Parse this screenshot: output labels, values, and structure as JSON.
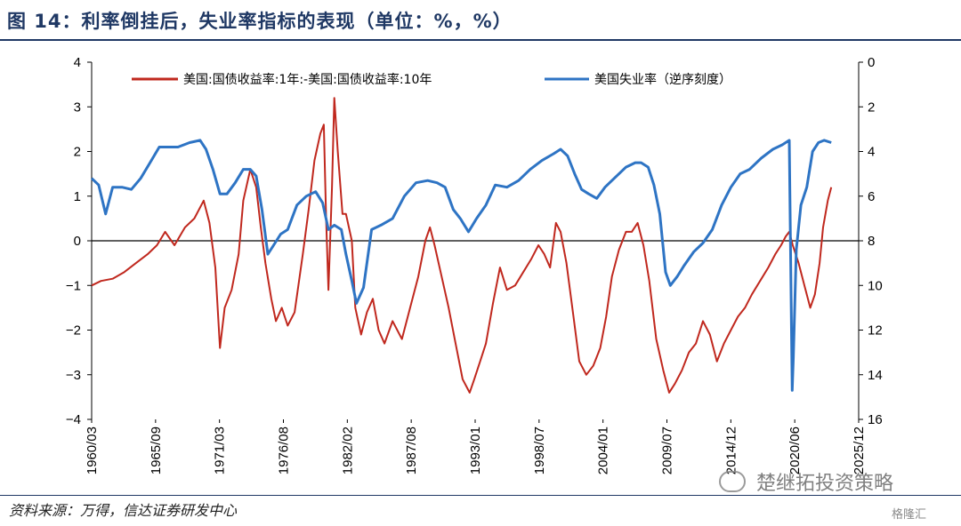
{
  "header": {
    "title": "图 14：利率倒挂后，失业率指标的表现（单位：%，%）"
  },
  "footer": {
    "source": "资料来源：万得，信达证券研发中心"
  },
  "watermark": {
    "text": "楚继拓投资策略"
  },
  "logo": {
    "text": "格隆汇"
  },
  "chart_data": {
    "type": "line",
    "title": "图 14：利率倒挂后，失业率指标的表现（单位：%，%）",
    "x_tick_labels": [
      "1960/03",
      "1965/09",
      "1971/03",
      "1976/08",
      "1982/02",
      "1987/08",
      "1993/01",
      "1998/07",
      "2004/01",
      "2009/07",
      "2014/12",
      "2020/06",
      "2025/12"
    ],
    "x_range": [
      "1960/03",
      "2025/12"
    ],
    "y_left": {
      "range": [
        -4,
        4
      ],
      "ticks": [
        -4,
        -3,
        -2,
        -1,
        0,
        1,
        2,
        3,
        4
      ]
    },
    "y_right": {
      "range": [
        0,
        16
      ],
      "inverted": true,
      "ticks": [
        0,
        2,
        4,
        6,
        8,
        10,
        12,
        14,
        16
      ]
    },
    "legend_placement": "top",
    "grid": false,
    "series": [
      {
        "name": "美国:国债收益率:1年:-美国:国债收益率:10年",
        "axis": "left",
        "color": "#c0281e",
        "x": [
          1960.2,
          1961.0,
          1962.0,
          1963.0,
          1964.0,
          1965.0,
          1965.8,
          1966.5,
          1967.3,
          1968.2,
          1969.0,
          1969.8,
          1970.3,
          1970.8,
          1971.2,
          1971.6,
          1972.2,
          1972.8,
          1973.2,
          1973.8,
          1974.3,
          1974.7,
          1975.1,
          1975.6,
          1976.0,
          1976.5,
          1977.0,
          1977.6,
          1978.3,
          1978.8,
          1979.3,
          1979.8,
          1980.1,
          1980.3,
          1980.5,
          1980.8,
          1981.0,
          1981.3,
          1981.7,
          1982.0,
          1982.5,
          1982.8,
          1983.3,
          1983.8,
          1984.3,
          1984.8,
          1985.3,
          1986.0,
          1986.8,
          1987.5,
          1988.2,
          1988.8,
          1989.2,
          1989.6,
          1990.2,
          1990.8,
          1991.4,
          1992.0,
          1992.6,
          1993.0,
          1993.5,
          1994.0,
          1994.6,
          1995.2,
          1995.8,
          1996.5,
          1997.2,
          1997.9,
          1998.5,
          1999.0,
          1999.5,
          2000.0,
          2000.4,
          2000.9,
          2001.5,
          2002.0,
          2002.6,
          2003.2,
          2003.8,
          2004.3,
          2004.8,
          2005.4,
          2006.0,
          2006.5,
          2007.0,
          2007.5,
          2008.0,
          2008.6,
          2009.2,
          2009.7,
          2010.2,
          2010.8,
          2011.4,
          2012.0,
          2012.6,
          2013.2,
          2013.8,
          2014.4,
          2015.0,
          2015.6,
          2016.2,
          2016.8,
          2017.5,
          2018.2,
          2018.8,
          2019.3,
          2019.7,
          2020.0,
          2020.3,
          2020.8,
          2021.3,
          2021.8,
          2022.2,
          2022.6,
          2022.9,
          2023.3,
          2023.6
        ],
        "y": [
          -1.0,
          -0.9,
          -0.85,
          -0.7,
          -0.5,
          -0.3,
          -0.1,
          0.2,
          -0.1,
          0.3,
          0.5,
          0.9,
          0.4,
          -0.6,
          -2.4,
          -1.5,
          -1.1,
          -0.3,
          0.9,
          1.6,
          1.2,
          0.3,
          -0.5,
          -1.3,
          -1.8,
          -1.5,
          -1.9,
          -1.6,
          -0.3,
          0.7,
          1.8,
          2.4,
          2.6,
          0.5,
          -1.1,
          1.2,
          3.2,
          2.0,
          0.6,
          0.6,
          0.0,
          -1.5,
          -2.1,
          -1.6,
          -1.3,
          -2.0,
          -2.3,
          -1.8,
          -2.2,
          -1.5,
          -0.8,
          0.0,
          0.3,
          -0.1,
          -0.8,
          -1.5,
          -2.3,
          -3.1,
          -3.4,
          -3.1,
          -2.7,
          -2.3,
          -1.4,
          -0.6,
          -1.1,
          -1.0,
          -0.7,
          -0.4,
          -0.1,
          -0.3,
          -0.6,
          0.4,
          0.2,
          -0.5,
          -1.7,
          -2.7,
          -3.0,
          -2.8,
          -2.4,
          -1.7,
          -0.8,
          -0.2,
          0.2,
          0.2,
          0.4,
          -0.1,
          -0.9,
          -2.2,
          -2.9,
          -3.4,
          -3.2,
          -2.9,
          -2.5,
          -2.3,
          -1.8,
          -2.1,
          -2.7,
          -2.3,
          -2.0,
          -1.7,
          -1.5,
          -1.2,
          -0.9,
          -0.6,
          -0.3,
          -0.1,
          0.1,
          0.2,
          -0.1,
          -0.5,
          -1.0,
          -1.5,
          -1.2,
          -0.5,
          0.3,
          0.9,
          1.2
        ]
      },
      {
        "name": "美国失业率（逆序刻度）",
        "axis": "right",
        "color": "#2e74c4",
        "x": [
          1960.2,
          1960.8,
          1961.4,
          1962.0,
          1962.8,
          1963.6,
          1964.4,
          1965.2,
          1966.0,
          1966.8,
          1967.6,
          1968.6,
          1969.5,
          1970.0,
          1970.6,
          1971.2,
          1971.8,
          1972.5,
          1973.2,
          1973.8,
          1974.3,
          1974.8,
          1975.3,
          1975.8,
          1976.4,
          1977.0,
          1977.8,
          1978.6,
          1979.4,
          1980.0,
          1980.5,
          1981.0,
          1981.6,
          1982.0,
          1982.5,
          1982.9,
          1983.5,
          1984.2,
          1985.0,
          1986.0,
          1987.0,
          1988.0,
          1989.0,
          1989.8,
          1990.5,
          1991.2,
          1991.8,
          1992.5,
          1993.2,
          1994.0,
          1994.8,
          1995.8,
          1996.8,
          1997.8,
          1998.8,
          1999.8,
          2000.4,
          2001.0,
          2001.6,
          2002.2,
          2002.8,
          2003.5,
          2004.2,
          2005.0,
          2006.0,
          2006.8,
          2007.3,
          2007.9,
          2008.4,
          2008.9,
          2009.4,
          2009.8,
          2010.4,
          2011.0,
          2011.8,
          2012.6,
          2013.4,
          2014.2,
          2015.0,
          2015.8,
          2016.6,
          2017.6,
          2018.6,
          2019.4,
          2020.0,
          2020.25,
          2020.35,
          2020.6,
          2021.0,
          2021.5,
          2022.0,
          2022.5,
          2023.0,
          2023.6
        ],
        "y": [
          5.2,
          5.5,
          6.8,
          5.6,
          5.6,
          5.7,
          5.2,
          4.5,
          3.8,
          3.8,
          3.8,
          3.6,
          3.5,
          3.9,
          4.8,
          5.9,
          5.9,
          5.4,
          4.8,
          4.8,
          5.1,
          6.6,
          8.6,
          8.2,
          7.7,
          7.5,
          6.4,
          6.0,
          5.8,
          6.3,
          7.5,
          7.3,
          7.5,
          8.6,
          9.8,
          10.8,
          10.1,
          7.5,
          7.3,
          7.0,
          6.0,
          5.4,
          5.3,
          5.4,
          5.6,
          6.6,
          7.0,
          7.6,
          7.0,
          6.4,
          5.5,
          5.6,
          5.3,
          4.8,
          4.4,
          4.1,
          3.9,
          4.2,
          5.0,
          5.7,
          5.9,
          6.1,
          5.6,
          5.2,
          4.7,
          4.5,
          4.5,
          4.7,
          5.5,
          6.8,
          9.4,
          10.0,
          9.6,
          9.1,
          8.5,
          8.1,
          7.5,
          6.4,
          5.6,
          5.0,
          4.8,
          4.3,
          3.9,
          3.7,
          3.5,
          14.7,
          13.2,
          8.4,
          6.4,
          5.6,
          4.0,
          3.6,
          3.5,
          3.6
        ]
      }
    ]
  }
}
